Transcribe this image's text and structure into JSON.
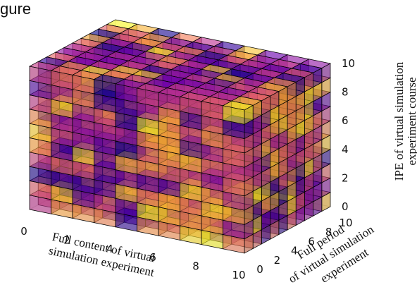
{
  "page": {
    "top_text": "gure"
  },
  "chart_data": {
    "type": "voxel-3d",
    "xlabel": [
      "Full content of virtual",
      "simulation experiment"
    ],
    "ylabel": [
      "Full period",
      "of virtual simulation",
      "experiment"
    ],
    "zlabel": [
      "IPE of virtual simulation",
      "experiment course"
    ],
    "xticks": [
      "0",
      "2",
      "4",
      "6",
      "8",
      "10"
    ],
    "yticks": [
      "0",
      "2",
      "4",
      "6",
      "8",
      "10"
    ],
    "zticks": [
      "0",
      "2",
      "4",
      "6",
      "8",
      "10"
    ],
    "xlim": [
      0,
      10
    ],
    "ylim": [
      0,
      10
    ],
    "zlim": [
      0,
      10
    ],
    "grid": true,
    "colormap": "plasma",
    "face_alpha": 0.6,
    "edge_color": "#000000"
  }
}
